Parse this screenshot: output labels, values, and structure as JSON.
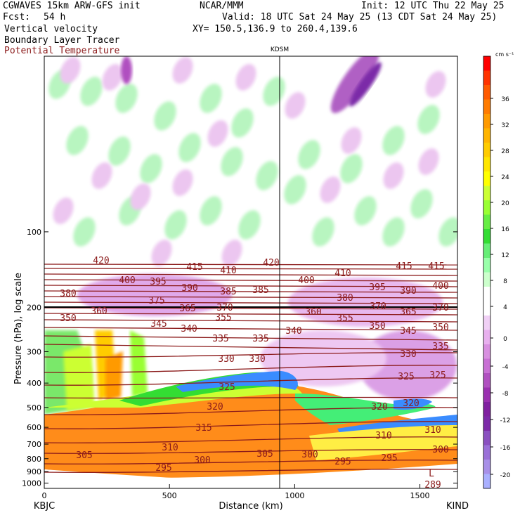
{
  "header": {
    "model": "CGWAVES 15km ARW-GFS init",
    "forecast_label": "Fcst:",
    "forecast_hours": "54 h",
    "org": "NCAR/MMM",
    "init": "Init: 12 UTC Thu 22 May 25",
    "valid": "Valid: 18 UTC Sat 24 May 25 (13 CDT Sat 24 May 25)",
    "xy": "XY= 150.5,136.9 to 260.4,139.6",
    "fields": [
      "Vertical velocity",
      "Boundary Layer Tracer",
      "Potential Temperature"
    ],
    "colors": {
      "field_text": "#000000",
      "theta_text": "#8b1a1a"
    }
  },
  "chart_data": {
    "type": "heatmap",
    "title": "KDSM",
    "xlabel": "Distance (km)",
    "ylabel": "Pressure (hPa), log scale",
    "x_ticks": [
      "0",
      "500",
      "1000",
      "1500"
    ],
    "xlim": [
      0,
      1650
    ],
    "y_ticks": [
      "100",
      "200",
      "300",
      "400",
      "500",
      "600",
      "700",
      "800",
      "900",
      "1000"
    ],
    "y_scale": "log",
    "ylim": [
      1050,
      20
    ],
    "endpoint_left": "KBJC",
    "endpoint_right": "KIND",
    "station_marker_km": 940,
    "station_label": "KDSM",
    "colorbar": {
      "unit": "cm s⁻¹",
      "ticks": [
        "36",
        "32",
        "28",
        "24",
        "20",
        "16",
        "12",
        "8",
        "4",
        "0",
        "-4",
        "-8",
        "-12",
        "-16",
        "-20"
      ],
      "colors": [
        "#ff0000",
        "#ff3300",
        "#ff5a00",
        "#ff7b00",
        "#ff9a00",
        "#ffb400",
        "#ffcc00",
        "#ffe600",
        "#ffff00",
        "#ccff33",
        "#99ff33",
        "#66ee44",
        "#33dd33",
        "#66ee77",
        "#99ffaa",
        "#ccffcc",
        "#ffffff",
        "#ffffff",
        "#f0d0f5",
        "#e8b0ee",
        "#d890e0",
        "#c870d4",
        "#b050c0",
        "#9a30b0",
        "#8020a0",
        "#7c2aa8",
        "#8a50c0",
        "#9a70d8",
        "#a890e8",
        "#aab0ff"
      ]
    },
    "theta_contours": [
      {
        "label": "295",
        "x": 233,
        "y": 666
      },
      {
        "label": "300",
        "x": 288,
        "y": 655
      },
      {
        "label": "305",
        "x": 120,
        "y": 648
      },
      {
        "label": "310",
        "x": 242,
        "y": 637
      },
      {
        "label": "315",
        "x": 290,
        "y": 609
      },
      {
        "label": "320",
        "x": 306,
        "y": 579
      },
      {
        "label": "325",
        "x": 323,
        "y": 551
      },
      {
        "label": "330",
        "x": 322,
        "y": 511
      },
      {
        "label": "330",
        "x": 366,
        "y": 511
      },
      {
        "label": "335",
        "x": 314,
        "y": 482
      },
      {
        "label": "335",
        "x": 371,
        "y": 482
      },
      {
        "label": "340",
        "x": 269,
        "y": 468
      },
      {
        "label": "345",
        "x": 226,
        "y": 461
      },
      {
        "label": "350",
        "x": 97,
        "y": 453
      },
      {
        "label": "355",
        "x": 318,
        "y": 452
      },
      {
        "label": "360",
        "x": 141,
        "y": 443
      },
      {
        "label": "365",
        "x": 267,
        "y": 439
      },
      {
        "label": "370",
        "x": 320,
        "y": 438
      },
      {
        "label": "375",
        "x": 223,
        "y": 428
      },
      {
        "label": "380",
        "x": 97,
        "y": 418
      },
      {
        "label": "385",
        "x": 325,
        "y": 415
      },
      {
        "label": "385",
        "x": 371,
        "y": 413
      },
      {
        "label": "390",
        "x": 270,
        "y": 410
      },
      {
        "label": "395",
        "x": 225,
        "y": 401
      },
      {
        "label": "400",
        "x": 181,
        "y": 399
      },
      {
        "label": "410",
        "x": 325,
        "y": 385
      },
      {
        "label": "415",
        "x": 277,
        "y": 380
      },
      {
        "label": "420",
        "x": 144,
        "y": 371
      },
      {
        "label": "420",
        "x": 386,
        "y": 374
      },
      {
        "label": "305",
        "x": 377,
        "y": 646
      },
      {
        "label": "300",
        "x": 441,
        "y": 647
      },
      {
        "label": "295",
        "x": 488,
        "y": 657
      },
      {
        "label": "295",
        "x": 554,
        "y": 652
      },
      {
        "label": "300",
        "x": 627,
        "y": 640
      },
      {
        "label": "310",
        "x": 546,
        "y": 620
      },
      {
        "label": "310",
        "x": 616,
        "y": 612
      },
      {
        "label": "320",
        "x": 540,
        "y": 579
      },
      {
        "label": "320",
        "x": 585,
        "y": 574
      },
      {
        "label": "325",
        "x": 578,
        "y": 536
      },
      {
        "label": "325",
        "x": 623,
        "y": 534
      },
      {
        "label": "330",
        "x": 581,
        "y": 504
      },
      {
        "label": "335",
        "x": 627,
        "y": 493
      },
      {
        "label": "340",
        "x": 418,
        "y": 471
      },
      {
        "label": "345",
        "x": 581,
        "y": 471
      },
      {
        "label": "350",
        "x": 537,
        "y": 464
      },
      {
        "label": "350",
        "x": 627,
        "y": 466
      },
      {
        "label": "355",
        "x": 491,
        "y": 453
      },
      {
        "label": "360",
        "x": 446,
        "y": 444
      },
      {
        "label": "365",
        "x": 581,
        "y": 444
      },
      {
        "label": "370",
        "x": 538,
        "y": 436
      },
      {
        "label": "370",
        "x": 627,
        "y": 438
      },
      {
        "label": "380",
        "x": 491,
        "y": 424
      },
      {
        "label": "390",
        "x": 581,
        "y": 414
      },
      {
        "label": "395",
        "x": 537,
        "y": 409
      },
      {
        "label": "400",
        "x": 436,
        "y": 399
      },
      {
        "label": "400",
        "x": 627,
        "y": 407
      },
      {
        "label": "410",
        "x": 488,
        "y": 389
      },
      {
        "label": "415",
        "x": 575,
        "y": 379
      },
      {
        "label": "415",
        "x": 621,
        "y": 379
      },
      {
        "label": "289",
        "x": 616,
        "y": 690
      },
      {
        "label": "L",
        "x": 614,
        "y": 674
      }
    ]
  }
}
